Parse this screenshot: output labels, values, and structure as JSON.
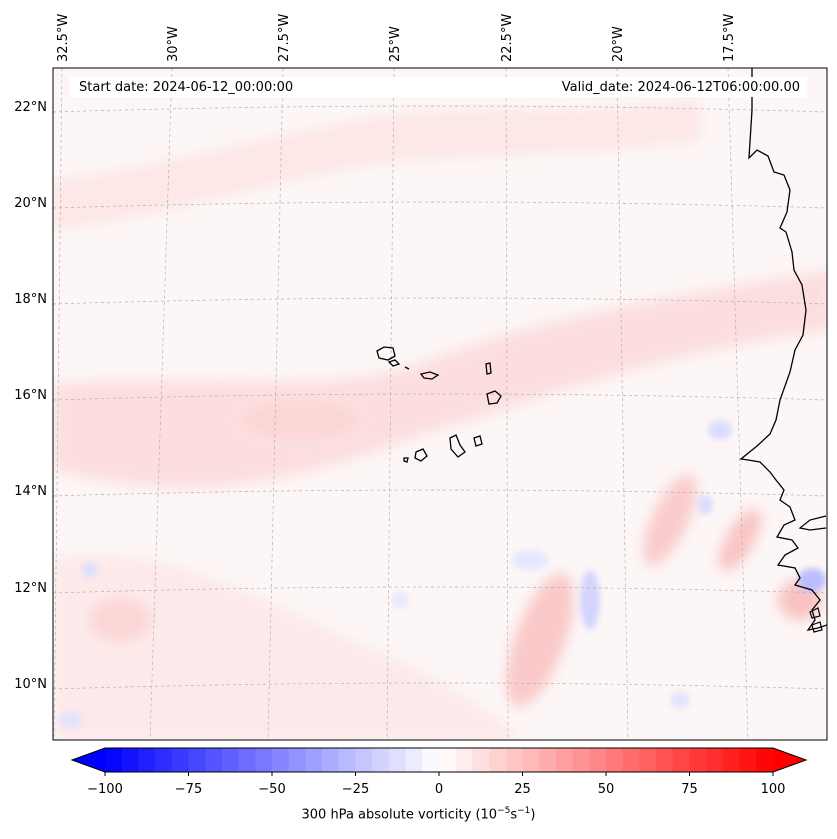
{
  "header": {
    "start_date": "Start date: 2024-06-12_00:00:00",
    "valid_date": "Valid_date: 2024-06-12T06:00:00.00"
  },
  "longitude_labels": [
    "32.5°W",
    "30°W",
    "27.5°W",
    "25°W",
    "22.5°W",
    "20°W",
    "17.5°W"
  ],
  "latitude_labels": [
    "22°N",
    "20°N",
    "18°N",
    "16°N",
    "14°N",
    "12°N",
    "10°N"
  ],
  "colorbar": {
    "min": -100,
    "max": 100,
    "ticks": [
      "−100",
      "−75",
      "−50",
      "−25",
      "0",
      "25",
      "50",
      "75",
      "100"
    ],
    "low_color": "#0000ff",
    "mid_color": "#ffffff",
    "high_color": "#ff0000",
    "caption_prefix": "300 hPa absolute vorticity (10",
    "caption_exp1": "−5",
    "caption_mid": "s",
    "caption_exp2": "−1",
    "caption_suffix": ")"
  },
  "colors": {
    "coastline": "#000000",
    "gridline": "#b0b0b0",
    "pale_red": "#fde8e8",
    "light_red": "#fcd6d6",
    "pale_blue": "#eaeaff",
    "light_blue": "#d2d4ff"
  }
}
